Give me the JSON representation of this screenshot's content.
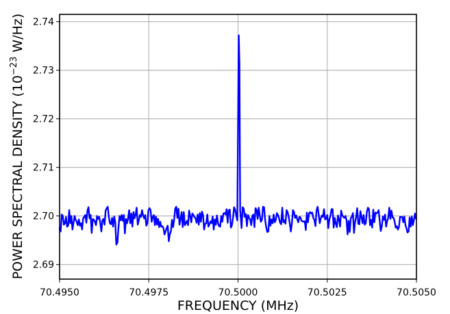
{
  "chart_data": {
    "type": "line",
    "xlabel": "FREQUENCY (MHz)",
    "ylabel_main": "POWER SPECTRAL DENSITY (10",
    "ylabel_exp": "−23",
    "ylabel_unit": " W/Hz)",
    "xlim": [
      70.495,
      70.505
    ],
    "ylim": [
      2.687,
      2.7415
    ],
    "x_ticks": [
      {
        "value": 70.495,
        "label": "70.4950"
      },
      {
        "value": 70.4975,
        "label": "70.4975"
      },
      {
        "value": 70.5,
        "label": "70.5000"
      },
      {
        "value": 70.5025,
        "label": "70.5025"
      },
      {
        "value": 70.505,
        "label": "70.5050"
      }
    ],
    "y_ticks": [
      {
        "value": 2.69,
        "label": "2.69"
      },
      {
        "value": 2.7,
        "label": "2.70"
      },
      {
        "value": 2.71,
        "label": "2.71"
      },
      {
        "value": 2.72,
        "label": "2.72"
      },
      {
        "value": 2.73,
        "label": "2.73"
      },
      {
        "value": 2.74,
        "label": "2.74"
      }
    ],
    "grid": true,
    "series": [
      {
        "color": "#0000ff",
        "x_start": 70.495,
        "x_step": 3e-05,
        "y": [
          2.6975,
          2.6968,
          2.7003,
          2.7,
          2.6982,
          2.6985,
          2.6998,
          2.6978,
          2.698,
          2.7012,
          2.6985,
          2.7,
          2.6972,
          2.6986,
          2.7,
          2.6992,
          2.6988,
          2.6981,
          2.6993,
          2.698,
          2.6985,
          2.6972,
          2.6995,
          2.6998,
          2.7002,
          2.6986,
          2.7011,
          2.7018,
          2.6995,
          2.7002,
          2.6965,
          2.6994,
          2.6992,
          2.6988,
          2.6981,
          2.7,
          2.6994,
          2.6998,
          2.6986,
          2.6968,
          2.6991,
          2.6994,
          2.6982,
          2.7011,
          2.7016,
          2.7019,
          2.6998,
          2.6985,
          2.6983,
          2.6996,
          2.6978,
          2.6999,
          2.6987,
          2.6941,
          2.6945,
          2.6976,
          2.7,
          2.6991,
          2.7002,
          2.699,
          2.7002,
          2.6964,
          2.6994,
          2.6985,
          2.6995,
          2.7012,
          2.6985,
          2.7005,
          2.6978,
          2.7008,
          2.6995,
          2.7003,
          2.7017,
          2.6982,
          2.6991,
          2.7002,
          2.6998,
          2.7012,
          2.7001,
          2.6995,
          2.7002,
          2.698,
          2.6985,
          2.7012,
          2.7016,
          2.7012,
          2.6988,
          2.6998,
          2.7002,
          2.6981,
          2.6999,
          2.6982,
          2.6994,
          2.6977,
          2.6988,
          2.6978,
          2.6979,
          2.6975,
          2.6962,
          2.6968,
          2.6975,
          2.698,
          2.6948,
          2.6963,
          2.6968,
          2.6992,
          2.6977,
          2.6992,
          2.7015,
          2.7019,
          2.6996,
          2.7015,
          2.6982,
          2.6993,
          2.7008,
          2.6977,
          2.7008,
          2.6981,
          2.6985,
          2.699,
          2.6981,
          2.7011,
          2.7,
          2.6987,
          2.7005,
          2.7002,
          2.6998,
          2.6995,
          2.6986,
          2.7003,
          2.6982,
          2.7006,
          2.6988,
          2.7009,
          2.7002,
          2.6972,
          2.6984,
          2.6985,
          2.7003,
          2.6978,
          2.6983,
          2.6989,
          2.6985,
          2.6999,
          2.6972,
          2.6993,
          2.6982,
          2.7001,
          2.6985,
          2.6979,
          2.6978,
          2.7,
          2.6988,
          2.7005,
          2.7006,
          2.7003,
          2.7014,
          2.6986,
          2.7012,
          2.7013,
          2.6976,
          2.6981,
          2.6996,
          2.7018,
          2.7013,
          2.7001,
          2.6996,
          2.6997,
          2.702,
          2.7027,
          2.7012,
          2.7018,
          2.7015,
          2.6998,
          2.7004,
          2.6979,
          2.7002,
          2.6996,
          2.6993,
          2.6981,
          2.7,
          2.7003,
          2.6977,
          2.7016,
          2.7013,
          2.6994,
          2.7017,
          2.7001,
          2.6988,
          2.6992,
          2.7019,
          2.7018,
          2.6992,
          2.6977,
          2.6967,
          2.6968,
          2.7,
          2.698,
          2.6993,
          2.6985,
          2.7003,
          2.6987,
          2.6992,
          2.7006,
          2.7002,
          2.6995,
          2.6986,
          2.6983,
          2.7017,
          2.6987,
          2.6991,
          2.6984,
          2.7012,
          2.7008,
          2.6998,
          2.6985,
          2.6968,
          2.6985,
          2.7012,
          2.7008,
          2.6996,
          2.7001,
          2.6993,
          2.6987,
          2.6998,
          2.6997,
          2.699,
          2.6989,
          2.6988,
          2.6989,
          2.6971,
          2.7007,
          2.6987,
          2.7005,
          2.7008,
          2.7005,
          2.7007,
          2.6996,
          2.6992,
          2.6979,
          2.7011,
          2.7019,
          2.7004,
          2.6985,
          2.6995,
          2.7001,
          2.6998,
          2.7014,
          2.6993,
          2.6994,
          2.7002,
          2.6975,
          2.6993,
          2.7,
          2.7014,
          2.7014,
          2.6976,
          2.6996,
          2.6984,
          2.6977,
          2.7001,
          2.6993,
          2.6978,
          2.7011,
          2.7002,
          2.6998,
          2.6996,
          2.7,
          2.6992,
          2.6962,
          2.699,
          2.6967,
          2.6996,
          2.6998,
          2.7006,
          2.6965,
          2.6987,
          2.6998,
          2.7016,
          2.6984,
          2.6983,
          2.701,
          2.6998,
          2.6985,
          2.7002,
          2.6982,
          2.6985,
          2.7008,
          2.7017,
          2.7014,
          2.6981,
          2.6992,
          2.6976,
          2.7013,
          2.6987,
          2.7007,
          2.7005,
          2.7007,
          2.7012,
          2.699,
          2.6969,
          2.6979,
          2.6999,
          2.6992,
          2.7003,
          2.6978,
          2.699,
          2.6996,
          2.7017,
          2.6994,
          2.7011,
          2.6997,
          2.6996,
          2.6988,
          2.6976,
          2.6979,
          2.6972,
          2.6977,
          2.6998,
          2.6998,
          2.6998,
          2.6987,
          2.6999,
          2.6982,
          2.6975,
          2.6966,
          2.6968,
          2.6997,
          2.6978,
          2.6999,
          2.6981,
          2.6992,
          2.7005,
          2.6994,
          2.6991,
          2.6986,
          2.6997,
          2.6985,
          2.7011,
          2.6969,
          2.6958
        ]
      }
    ],
    "peak": [
      {
        "x": 70.49998,
        "y": 2.6991
      },
      {
        "x": 70.50002,
        "y": 2.7372
      },
      {
        "x": 70.50004,
        "y": 2.7315
      },
      {
        "x": 70.50006,
        "y": 2.7012
      },
      {
        "x": 70.5001,
        "y": 2.6975
      }
    ]
  }
}
